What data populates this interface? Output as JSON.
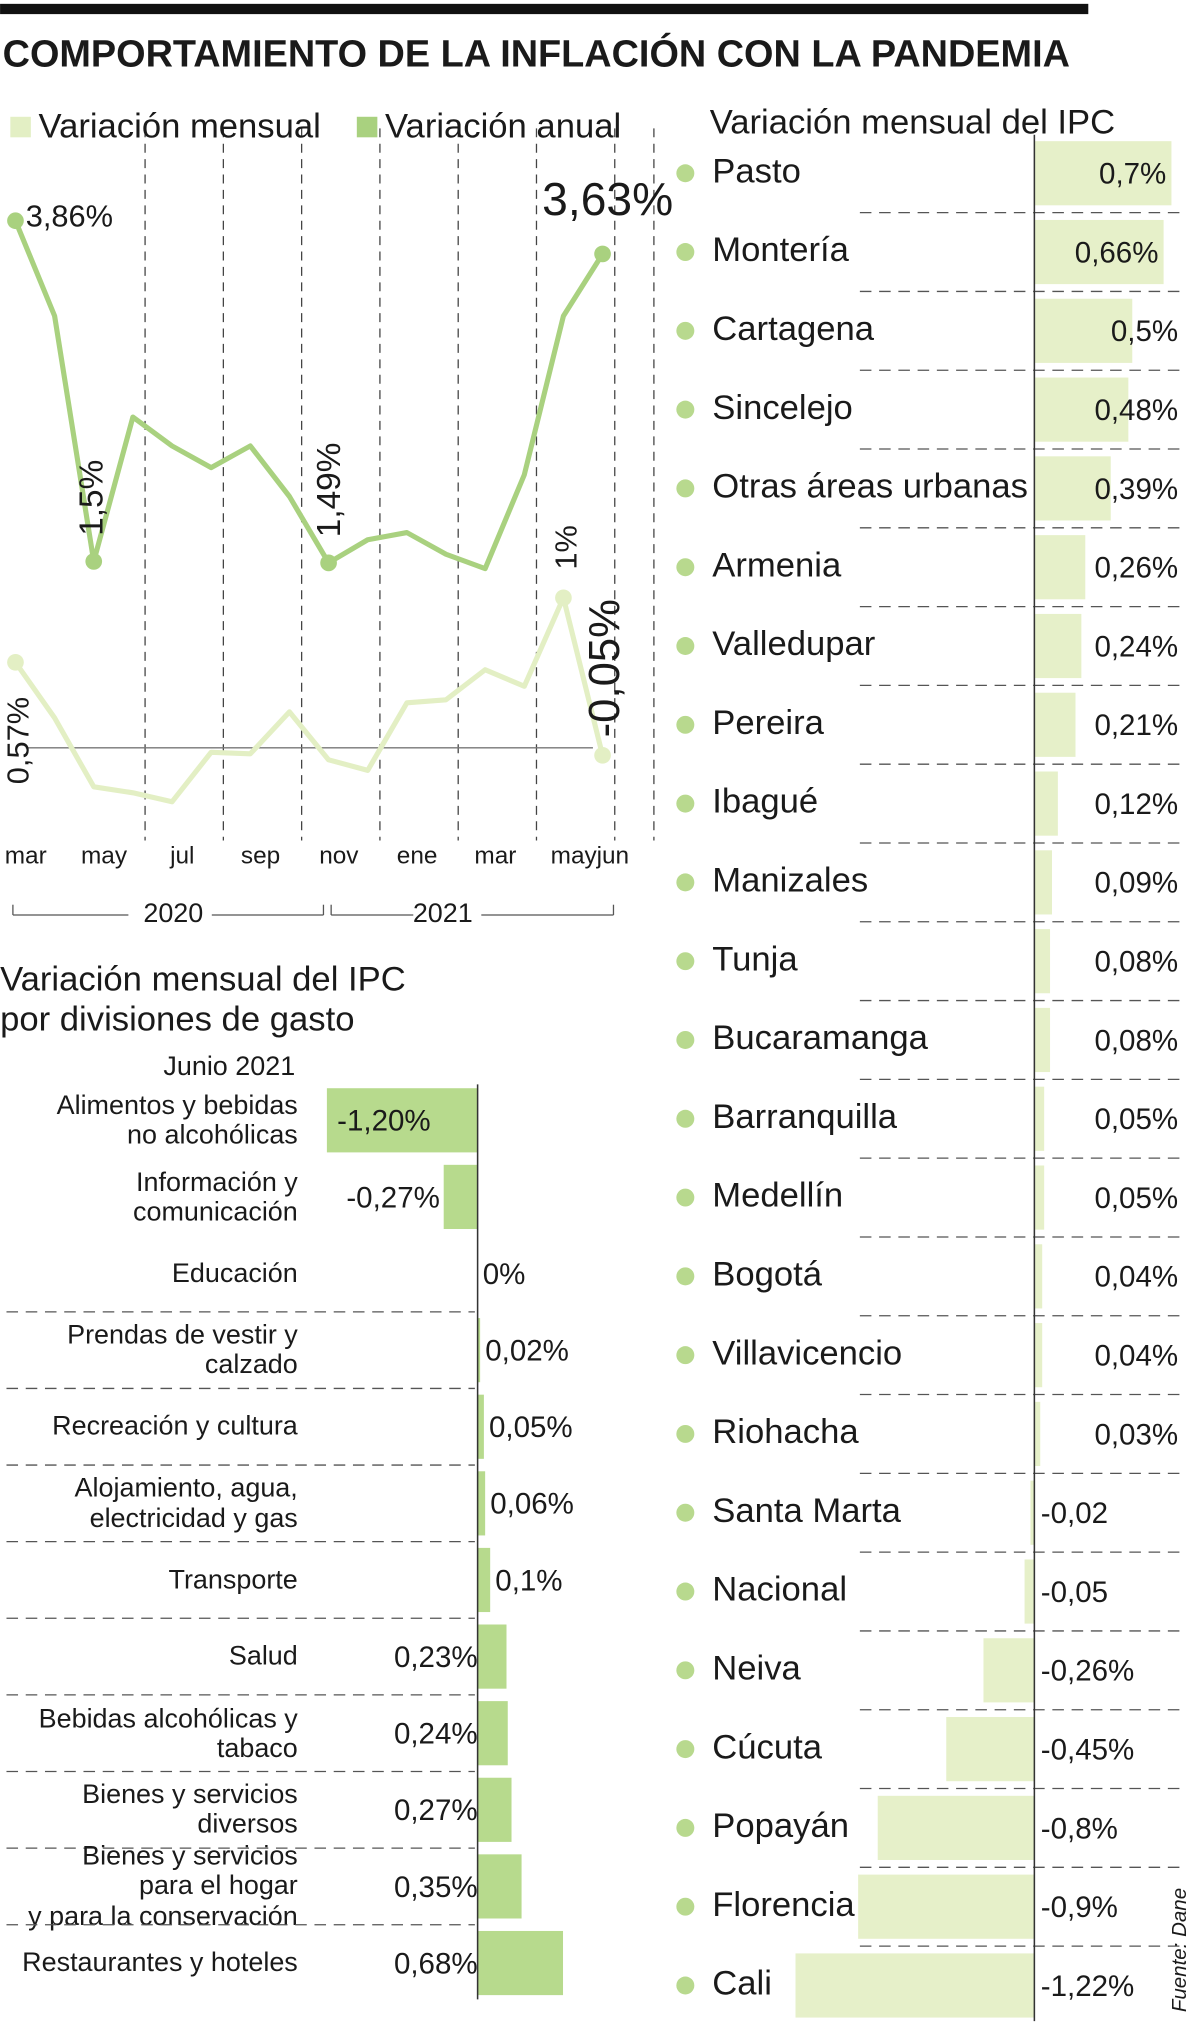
{
  "title": "COMPORTAMIENTO DE LA INFLACIÓN CON LA PANDEMIA",
  "source": "Fuente: Dane",
  "chart_data": [
    {
      "type": "line",
      "categories": [
        "mar",
        null,
        "may",
        null,
        "jul",
        null,
        "sep",
        null,
        "nov",
        null,
        "ene",
        null,
        "mar",
        null,
        "may",
        "jun"
      ],
      "year_labels": [
        "2020",
        "2021"
      ],
      "series": [
        {
          "name": "Variación mensual",
          "color": "#e3efc4",
          "axis": "y2",
          "values": [
            0.57,
            0.2,
            -0.26,
            -0.3,
            -0.36,
            -0.03,
            -0.04,
            0.24,
            -0.08,
            -0.15,
            0.3,
            0.32,
            0.52,
            0.41,
            1,
            -0.05
          ],
          "value_labels": [
            "0,57%",
            null,
            null,
            null,
            null,
            null,
            null,
            null,
            null,
            null,
            null,
            null,
            null,
            null,
            "1%",
            "-0,05%"
          ]
        },
        {
          "name": "Variación anual",
          "color": "#a9d17f",
          "values": [
            3.86,
            3.2,
            1.5,
            2.5,
            2.3,
            2.15,
            2.3,
            1.95,
            1.49,
            1.65,
            1.7,
            1.55,
            1.45,
            2.1,
            3.2,
            3.63
          ],
          "value_labels": [
            "3,86%",
            null,
            "1,5%",
            null,
            null,
            null,
            null,
            null,
            "1,49%",
            null,
            null,
            null,
            null,
            null,
            null,
            "3,63%"
          ]
        }
      ],
      "ylim": [
        -0.3,
        4.5
      ],
      "y2lim": [
        -0.49,
        4.13
      ],
      "grid": true
    },
    {
      "type": "hbar",
      "title": "Variación mensual del IPC\npor divisiones de gasto",
      "subtitle": "Junio 2021",
      "categories": [
        "Alimentos y bebidas\nno alcohólicas",
        "Información y comunicación",
        "Educación",
        "Prendas de vestir y calzado",
        "Recreación y cultura",
        "Alojamiento, agua,\nelectricidad y gas",
        "Transporte",
        "Salud",
        "Bebidas alcohólicas y tabaco",
        "Bienes y servicios diversos",
        "Bienes y servicios\npara el hogar\ny para la conservación",
        "Restaurantes y hoteles"
      ],
      "values": [
        -1.2,
        -0.27,
        0,
        0.02,
        0.05,
        0.06,
        0.1,
        0.23,
        0.24,
        0.27,
        0.35,
        0.68
      ],
      "value_labels": [
        "-1,20%",
        "-0,27%",
        "0%",
        "0,02%",
        "0,05%",
        "0,06%",
        "0,1%",
        "0,23%",
        "0,24%",
        "0,27%",
        "0,35%",
        "0,68%"
      ],
      "color": "#b7da8d",
      "xlim": [
        -1.35,
        1.0
      ]
    },
    {
      "type": "hbar",
      "title": "Variación mensual del IPC",
      "categories": [
        "Pasto",
        "Montería",
        "Cartagena",
        "Sincelejo",
        "Otras áreas urbanas",
        "Armenia",
        "Valledupar",
        "Pereira",
        "Ibagué",
        "Manizales",
        "Tunja",
        "Bucaramanga",
        "Barranquilla",
        "Medellín",
        "Bogotá",
        "Villavicencio",
        "Riohacha",
        "Santa Marta",
        "Nacional",
        "Neiva",
        "Cúcuta",
        "Popayán",
        "Florencia",
        "Cali"
      ],
      "values": [
        0.7,
        0.66,
        0.5,
        0.48,
        0.39,
        0.26,
        0.24,
        0.21,
        0.12,
        0.09,
        0.08,
        0.08,
        0.05,
        0.05,
        0.04,
        0.04,
        0.03,
        -0.02,
        -0.05,
        -0.26,
        -0.45,
        -0.8,
        -0.9,
        -1.22
      ],
      "value_labels": [
        "0,7%",
        "0,66%",
        "0,5%",
        "0,48%",
        "0,39%",
        "0,26%",
        "0,24%",
        "0,21%",
        "0,12%",
        "0,09%",
        "0,08%",
        "0,08%",
        "0,05%",
        "0,05%",
        "0,04%",
        "0,04%",
        "0,03%",
        "-0,02",
        "-0,05",
        "-0,26%",
        "-0,45%",
        "-0,8%",
        "-0,9%",
        "-1,22%"
      ],
      "color": "#e6f0c9",
      "xlim": [
        -1.35,
        0.78
      ]
    }
  ]
}
